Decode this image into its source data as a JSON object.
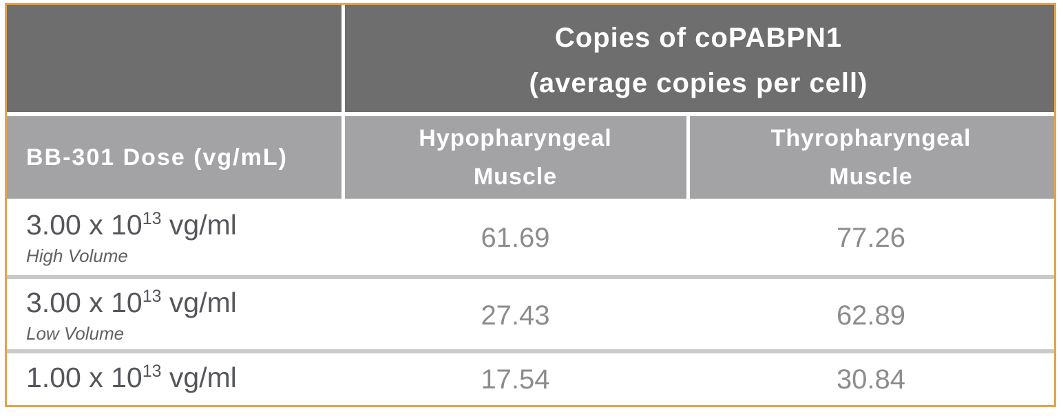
{
  "chart_data": {
    "type": "table",
    "title": "Copies of coPABPN1 (average copies per cell)",
    "columns": [
      "BB-301 Dose (vg/mL)",
      "Hypopharyngeal Muscle",
      "Thyropharyngeal Muscle"
    ],
    "rows": [
      [
        "3.00 x 10^13 vg/ml (High Volume)",
        61.69,
        77.26
      ],
      [
        "3.00 x 10^13 vg/ml (Low Volume)",
        27.43,
        62.89
      ],
      [
        "1.00 x 10^13 vg/ml",
        17.54,
        30.84
      ]
    ]
  },
  "table": {
    "merged_header": {
      "line1": "Copies of coPABPN1",
      "line2": "(average copies per cell)"
    },
    "dose_header": "BB-301 Dose (vg/mL)",
    "col_headers": [
      {
        "line1": "Hypopharyngeal",
        "line2": "Muscle"
      },
      {
        "line1": "Thyropharyngeal",
        "line2": "Muscle"
      }
    ],
    "rows": [
      {
        "dose_base": "3.00 x 10",
        "dose_exp": "13",
        "dose_unit": " vg/ml",
        "volume": "High Volume",
        "values": [
          "61.69",
          "77.26"
        ]
      },
      {
        "dose_base": "3.00 x 10",
        "dose_exp": "13",
        "dose_unit": " vg/ml",
        "volume": "Low Volume",
        "values": [
          "27.43",
          "62.89"
        ]
      },
      {
        "dose_base": "1.00 x 10",
        "dose_exp": "13",
        "dose_unit": " vg/ml",
        "values": [
          "17.54",
          "30.84"
        ]
      }
    ],
    "colors": {
      "border_orange": "#E2A44E",
      "header_dark_gray": "#6E6E6E",
      "subheader_gray": "#A3A3A5",
      "row_divider_gray": "#C8C9CB",
      "dose_text": "#54565B",
      "value_text": "#8A8C8E",
      "header_text": "#FFFFFF"
    }
  }
}
